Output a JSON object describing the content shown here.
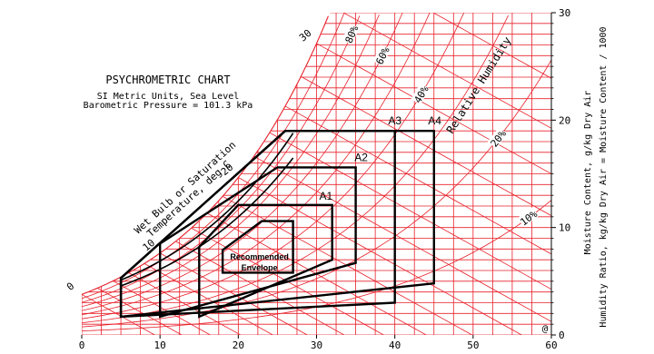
{
  "chart_data": {
    "type": "line",
    "title": "PSYCHROMETRIC CHART",
    "subtitle_line1": "SI Metric Units, Sea Level",
    "subtitle_line2": "Barometric Pressure = 101.3 kPa",
    "xlabel": "",
    "ylabel_line1": "Moisture Content, g/kg Dry Air",
    "ylabel_line2": "Humidity Ratio, kg/kg Dry Air = Moisture Content / 1000",
    "wet_bulb_label_line1": "Wet Bulb or Saturation",
    "wet_bulb_label_line2": "Temperature, deg C",
    "relative_humidity_label": "Relative Humidity",
    "xlim": [
      0,
      60
    ],
    "ylim": [
      0,
      30
    ],
    "x_ticks": [
      "0",
      "10",
      "20",
      "30",
      "40",
      "50",
      "60"
    ],
    "y_ticks": [
      "0",
      "10",
      "20",
      "30"
    ],
    "wet_bulb_ticks": [
      "0",
      "10",
      "20",
      "30"
    ],
    "rh_labels": [
      "80%",
      "60%",
      "40%",
      "20%",
      "10%"
    ],
    "corner_mark": "@",
    "envelopes": [
      {
        "name": "Recommended Envelope",
        "label_line1": "Recommended",
        "label_line2": "Envelope",
        "points": [
          [
            18,
            5.8
          ],
          [
            27,
            5.8
          ],
          [
            27,
            10.6
          ],
          [
            23,
            10.6
          ],
          [
            18,
            7.9
          ]
        ]
      },
      {
        "name": "A1",
        "label": "A1",
        "points": [
          [
            15,
            1.7
          ],
          [
            32,
            7.0
          ],
          [
            32,
            12.1
          ],
          [
            20,
            12.1
          ],
          [
            15,
            8.2
          ]
        ]
      },
      {
        "name": "A2",
        "label": "A2",
        "points": [
          [
            10,
            1.7
          ],
          [
            35,
            6.7
          ],
          [
            35,
            15.6
          ],
          [
            25,
            15.6
          ],
          [
            10,
            8.5
          ]
        ]
      },
      {
        "name": "A3",
        "label": "A3",
        "points": [
          [
            5,
            1.7
          ],
          [
            40,
            3.0
          ],
          [
            40,
            19.0
          ],
          [
            26,
            19.0
          ],
          [
            5,
            5.3
          ]
        ]
      },
      {
        "name": "A4",
        "label": "A4",
        "points": [
          [
            5,
            1.7
          ],
          [
            45,
            4.8
          ],
          [
            45,
            19.0
          ],
          [
            26,
            19.0
          ],
          [
            5,
            5.3
          ]
        ]
      }
    ],
    "grid": true,
    "colors": {
      "grid": "#e8202a",
      "envelope": "#000000",
      "background": "#ffffff"
    }
  }
}
